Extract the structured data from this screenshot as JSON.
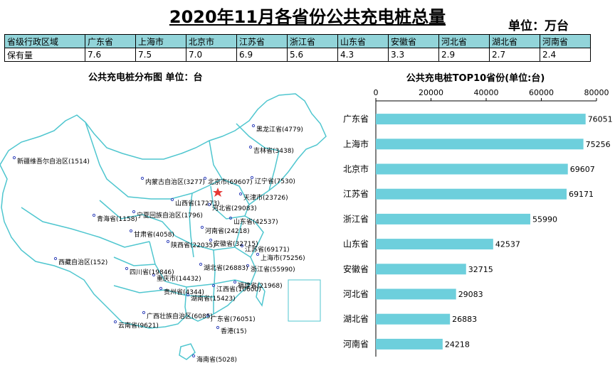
{
  "title": "2020年11月各省份公共充电桩总量",
  "unit": "单位：万台",
  "table": {
    "header_label": "省级行政区域",
    "row_label": "保有量",
    "provinces": [
      "广东省",
      "上海市",
      "北京市",
      "江苏省",
      "浙江省",
      "山东省",
      "安徽省",
      "河北省",
      "湖北省",
      "河南省"
    ],
    "values": [
      "7.6",
      "7.5",
      "7.0",
      "6.9",
      "5.6",
      "4.3",
      "3.3",
      "2.9",
      "2.7",
      "2.4"
    ]
  },
  "map": {
    "title": "公共充电桩分布图   单位：台",
    "labels": [
      "黑龙江省(4779)",
      "吉林省(3438)",
      "新疆维吾尔自治区(1514)",
      "内蒙古自治区(3277)",
      "北京市(69607)",
      "辽宁省(7530)",
      "天津市(23726)",
      "山西省(17273)",
      "河北省(29083)",
      "青海省(1158)",
      "宁夏回族自治区(1796)",
      "甘肃省(4058)",
      "山东省(42537)",
      "河南省(24218)",
      "陕西省(22035)",
      "安徽省(32715)",
      "江苏省(69171)",
      "上海市(75256)",
      "西藏自治区(152)",
      "四川省(19846)",
      "湖北省(26883)",
      "浙江省(55990)",
      "重庆市(14432)",
      "福建省(21968)",
      "贵州省(4344)",
      "江西省(10600)",
      "湖南省(15423)",
      "广西壮族自治区(6085)",
      "广东省(76051)",
      "云南省(9621)",
      "香港(15)",
      "海南省(5028)"
    ]
  },
  "chart_data": {
    "type": "bar",
    "orientation": "horizontal",
    "title": "公共充电桩TOP10省份(单位:台)",
    "categories": [
      "广东省",
      "上海市",
      "北京市",
      "江苏省",
      "浙江省",
      "山东省",
      "安徽省",
      "河北省",
      "湖北省",
      "河南省"
    ],
    "values": [
      76051,
      75256,
      69607,
      69171,
      55990,
      42537,
      32715,
      29083,
      26883,
      24218
    ],
    "xlim": [
      0,
      80000
    ],
    "xticks": [
      0,
      20000,
      40000,
      60000,
      80000
    ],
    "axis_position": "top",
    "grid": false,
    "bar_color": "#6dcfdc"
  }
}
